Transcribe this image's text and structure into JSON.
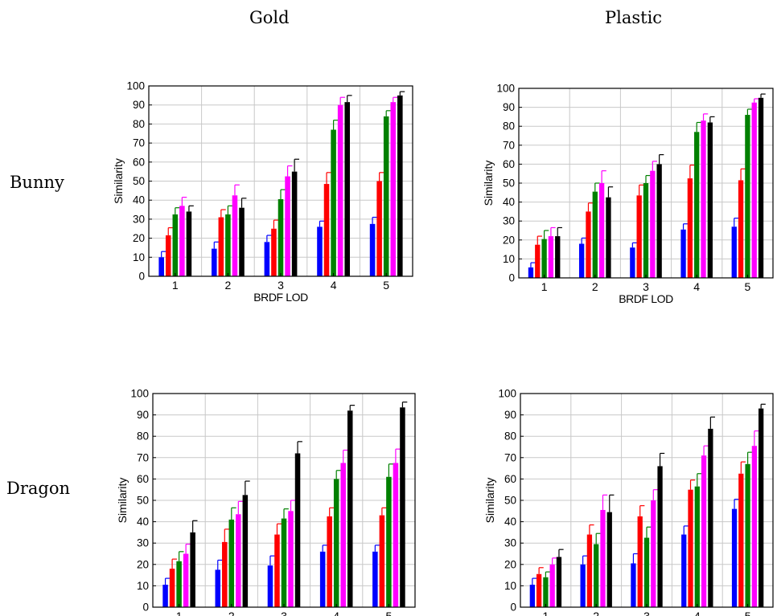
{
  "col_headers": [
    "Gold",
    "Plastic"
  ],
  "row_headers": [
    "Bunny",
    "Dragon"
  ],
  "series_colors": [
    "#0000ff",
    "#ff0000",
    "#008000",
    "#ff00ff",
    "#000000"
  ],
  "chart_data": [
    {
      "type": "bar",
      "categories": [
        "1",
        "2",
        "3",
        "4",
        "5"
      ],
      "xlabel": "BRDF LOD",
      "ylabel": "Similarity",
      "ylim": [
        0,
        100
      ],
      "yticks": [
        0,
        10,
        20,
        30,
        40,
        50,
        60,
        70,
        80,
        90,
        100
      ],
      "grid": true,
      "series": [
        {
          "values": [
            10,
            14.5,
            18,
            26,
            27.5
          ],
          "errors": [
            3,
            3.5,
            3.5,
            3,
            3.5
          ]
        },
        {
          "values": [
            21.5,
            31,
            25,
            48.5,
            50
          ],
          "errors": [
            4,
            4,
            4.5,
            6,
            4.5
          ]
        },
        {
          "values": [
            32.5,
            32.5,
            40.5,
            77,
            84
          ],
          "errors": [
            3.5,
            4.5,
            5,
            5,
            3
          ]
        },
        {
          "values": [
            37,
            42.5,
            52.5,
            90,
            91.5
          ],
          "errors": [
            4.5,
            5.5,
            5.5,
            4,
            2.5
          ]
        },
        {
          "values": [
            34,
            36,
            55,
            91.5,
            95
          ],
          "errors": [
            3,
            5,
            6.5,
            3.5,
            2
          ]
        }
      ]
    },
    {
      "type": "bar",
      "categories": [
        "1",
        "2",
        "3",
        "4",
        "5"
      ],
      "xlabel": "BRDF LOD",
      "ylabel": "Similarity",
      "ylim": [
        0,
        100
      ],
      "yticks": [
        0,
        10,
        20,
        30,
        40,
        50,
        60,
        70,
        80,
        90,
        100
      ],
      "grid": true,
      "series": [
        {
          "values": [
            5.5,
            18,
            16,
            25.5,
            27
          ],
          "errors": [
            2.5,
            3,
            2.5,
            3,
            4.5
          ]
        },
        {
          "values": [
            17.5,
            35,
            43.5,
            52.5,
            51.5
          ],
          "errors": [
            4.5,
            4.5,
            5.5,
            7,
            6
          ]
        },
        {
          "values": [
            20.5,
            45.5,
            50,
            77,
            86
          ],
          "errors": [
            4.5,
            4.5,
            4,
            5,
            3
          ]
        },
        {
          "values": [
            22,
            50,
            56.5,
            83,
            92.5
          ],
          "errors": [
            4.5,
            6.5,
            5,
            3.5,
            2
          ]
        },
        {
          "values": [
            22,
            42.5,
            60,
            82,
            95
          ],
          "errors": [
            4.5,
            5.5,
            5,
            3,
            2
          ]
        }
      ]
    },
    {
      "type": "bar",
      "categories": [
        "1",
        "2",
        "3",
        "4",
        "5"
      ],
      "xlabel": "BRDF LOD",
      "ylabel": "Similarity",
      "ylim": [
        0,
        100
      ],
      "yticks": [
        0,
        10,
        20,
        30,
        40,
        50,
        60,
        70,
        80,
        90,
        100
      ],
      "grid": true,
      "series": [
        {
          "values": [
            10.5,
            17.5,
            19.5,
            26,
            26
          ],
          "errors": [
            3,
            4.5,
            4.5,
            3,
            3
          ]
        },
        {
          "values": [
            18,
            30.5,
            34,
            42.5,
            43
          ],
          "errors": [
            4.5,
            6,
            5,
            4,
            3.5
          ]
        },
        {
          "values": [
            21.5,
            41,
            41.5,
            60,
            61
          ],
          "errors": [
            4.5,
            5.5,
            4.5,
            4,
            6
          ]
        },
        {
          "values": [
            25,
            43.5,
            45,
            67.5,
            67.5
          ],
          "errors": [
            4.5,
            6,
            5,
            6,
            6.5
          ]
        },
        {
          "values": [
            35,
            52.5,
            72,
            92,
            93.5
          ],
          "errors": [
            5.5,
            6.5,
            5.5,
            2.5,
            2.5
          ]
        }
      ]
    },
    {
      "type": "bar",
      "categories": [
        "1",
        "2",
        "3",
        "4",
        "5"
      ],
      "xlabel": "BRDF LOD",
      "ylabel": "Similarity",
      "ylim": [
        0,
        100
      ],
      "yticks": [
        0,
        10,
        20,
        30,
        40,
        50,
        60,
        70,
        80,
        90,
        100
      ],
      "grid": true,
      "series": [
        {
          "values": [
            10.5,
            20,
            20.5,
            34,
            46
          ],
          "errors": [
            3,
            4,
            4.5,
            4,
            4.5
          ]
        },
        {
          "values": [
            15.5,
            34,
            42.5,
            55,
            62.5
          ],
          "errors": [
            3,
            4.5,
            5,
            4.5,
            5.5
          ]
        },
        {
          "values": [
            14,
            29.5,
            32.5,
            56.5,
            67
          ],
          "errors": [
            2.5,
            5,
            5,
            6,
            5.5
          ]
        },
        {
          "values": [
            20,
            45.5,
            50,
            71,
            75.5
          ],
          "errors": [
            3,
            7,
            5,
            4.5,
            7
          ]
        },
        {
          "values": [
            23.5,
            44.5,
            66,
            83.5,
            93
          ],
          "errors": [
            3.5,
            8,
            6,
            5.5,
            2
          ]
        }
      ]
    }
  ]
}
